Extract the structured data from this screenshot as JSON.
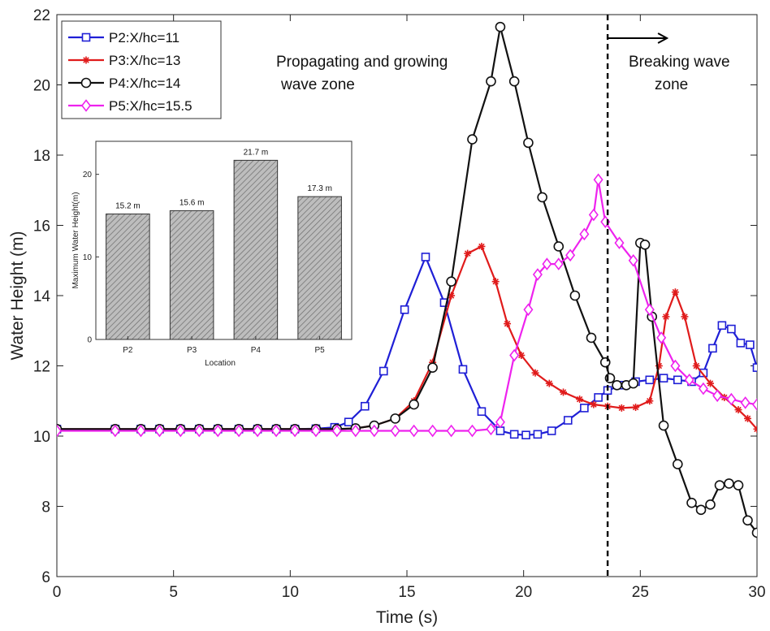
{
  "chart_data": {
    "type": "line",
    "xlabel": "Time (s)",
    "ylabel": "Water Height (m)",
    "xlim": [
      0,
      30
    ],
    "ylim": [
      6,
      22
    ],
    "xticks": [
      "0",
      "5",
      "10",
      "15",
      "20",
      "25",
      "30"
    ],
    "yticks": [
      "6",
      "8",
      "10",
      "12",
      "14",
      "16",
      "18",
      "20",
      "22"
    ],
    "grid": false,
    "legend_position": "top-left",
    "divider": {
      "x": 23.6,
      "style": "dashed",
      "color": "#000000"
    },
    "annotations": [
      {
        "text": "Propagating and growing",
        "anchor": "left zone"
      },
      {
        "text": "wave zone",
        "anchor": "left zone"
      },
      {
        "text": "Breaking wave",
        "anchor": "right zone"
      },
      {
        "text": "zone",
        "anchor": "right zone"
      }
    ],
    "series": [
      {
        "name": "P2:X/hc=11",
        "color": "#1f1fd6",
        "marker": "square",
        "points": [
          [
            0,
            10.2
          ],
          [
            2.5,
            10.2
          ],
          [
            3.6,
            10.2
          ],
          [
            4.4,
            10.2
          ],
          [
            5.3,
            10.2
          ],
          [
            6.1,
            10.2
          ],
          [
            6.9,
            10.2
          ],
          [
            7.8,
            10.2
          ],
          [
            8.6,
            10.2
          ],
          [
            9.4,
            10.2
          ],
          [
            10.2,
            10.2
          ],
          [
            11.1,
            10.21
          ],
          [
            11.9,
            10.25
          ],
          [
            12.5,
            10.4
          ],
          [
            13.2,
            10.85
          ],
          [
            14.0,
            11.85
          ],
          [
            14.9,
            13.6
          ],
          [
            15.8,
            15.1
          ],
          [
            16.6,
            13.8
          ],
          [
            17.4,
            11.9
          ],
          [
            18.2,
            10.7
          ],
          [
            19.0,
            10.15
          ],
          [
            19.6,
            10.05
          ],
          [
            20.1,
            10.03
          ],
          [
            20.6,
            10.05
          ],
          [
            21.2,
            10.15
          ],
          [
            21.9,
            10.45
          ],
          [
            22.6,
            10.8
          ],
          [
            23.2,
            11.1
          ],
          [
            23.6,
            11.3
          ],
          [
            24.2,
            11.45
          ],
          [
            24.8,
            11.55
          ],
          [
            25.4,
            11.6
          ],
          [
            26.0,
            11.65
          ],
          [
            26.6,
            11.6
          ],
          [
            27.2,
            11.55
          ],
          [
            27.7,
            11.8
          ],
          [
            28.1,
            12.5
          ],
          [
            28.5,
            13.15
          ],
          [
            28.9,
            13.05
          ],
          [
            29.3,
            12.65
          ],
          [
            29.7,
            12.6
          ],
          [
            30.0,
            11.95
          ]
        ]
      },
      {
        "name": "P3:X/hc=13",
        "color": "#e01b1b",
        "marker": "asterisk",
        "points": [
          [
            0,
            10.2
          ],
          [
            2.5,
            10.2
          ],
          [
            3.6,
            10.2
          ],
          [
            4.4,
            10.2
          ],
          [
            5.3,
            10.2
          ],
          [
            6.1,
            10.2
          ],
          [
            6.9,
            10.2
          ],
          [
            7.8,
            10.2
          ],
          [
            8.6,
            10.2
          ],
          [
            9.4,
            10.2
          ],
          [
            10.2,
            10.2
          ],
          [
            11.1,
            10.2
          ],
          [
            12.0,
            10.2
          ],
          [
            12.8,
            10.22
          ],
          [
            13.6,
            10.3
          ],
          [
            14.5,
            10.5
          ],
          [
            15.3,
            11.0
          ],
          [
            16.1,
            12.1
          ],
          [
            16.9,
            14.0
          ],
          [
            17.6,
            15.2
          ],
          [
            18.2,
            15.4
          ],
          [
            18.8,
            14.4
          ],
          [
            19.3,
            13.2
          ],
          [
            19.9,
            12.3
          ],
          [
            20.5,
            11.8
          ],
          [
            21.1,
            11.5
          ],
          [
            21.7,
            11.25
          ],
          [
            22.4,
            11.05
          ],
          [
            23.0,
            10.9
          ],
          [
            23.6,
            10.85
          ],
          [
            24.2,
            10.8
          ],
          [
            24.8,
            10.82
          ],
          [
            25.4,
            11.0
          ],
          [
            25.8,
            12.0
          ],
          [
            26.1,
            13.4
          ],
          [
            26.5,
            14.1
          ],
          [
            26.9,
            13.4
          ],
          [
            27.4,
            12.0
          ],
          [
            28.0,
            11.5
          ],
          [
            28.6,
            11.1
          ],
          [
            29.2,
            10.75
          ],
          [
            29.6,
            10.5
          ],
          [
            30.0,
            10.2
          ]
        ]
      },
      {
        "name": "P4:X/hc=14",
        "color": "#111111",
        "marker": "circle",
        "points": [
          [
            0,
            10.2
          ],
          [
            2.5,
            10.2
          ],
          [
            3.6,
            10.2
          ],
          [
            4.4,
            10.2
          ],
          [
            5.3,
            10.2
          ],
          [
            6.1,
            10.2
          ],
          [
            6.9,
            10.2
          ],
          [
            7.8,
            10.2
          ],
          [
            8.6,
            10.2
          ],
          [
            9.4,
            10.2
          ],
          [
            10.2,
            10.2
          ],
          [
            11.1,
            10.2
          ],
          [
            12.0,
            10.2
          ],
          [
            12.8,
            10.22
          ],
          [
            13.6,
            10.3
          ],
          [
            14.5,
            10.5
          ],
          [
            15.3,
            10.9
          ],
          [
            16.1,
            11.95
          ],
          [
            16.9,
            14.4
          ],
          [
            17.8,
            18.45
          ],
          [
            18.6,
            20.1
          ],
          [
            19.0,
            21.65
          ],
          [
            19.6,
            20.1
          ],
          [
            20.2,
            18.35
          ],
          [
            20.8,
            16.8
          ],
          [
            21.5,
            15.4
          ],
          [
            22.2,
            14.0
          ],
          [
            22.9,
            12.8
          ],
          [
            23.5,
            12.1
          ],
          [
            23.7,
            11.65
          ],
          [
            24.0,
            11.45
          ],
          [
            24.4,
            11.45
          ],
          [
            24.7,
            11.5
          ],
          [
            25.0,
            15.5
          ],
          [
            25.2,
            15.45
          ],
          [
            25.5,
            13.4
          ],
          [
            26.0,
            10.3
          ],
          [
            26.6,
            9.2
          ],
          [
            27.2,
            8.1
          ],
          [
            27.6,
            7.9
          ],
          [
            28.0,
            8.05
          ],
          [
            28.4,
            8.6
          ],
          [
            28.8,
            8.65
          ],
          [
            29.2,
            8.6
          ],
          [
            29.6,
            7.6
          ],
          [
            30.0,
            7.25
          ]
        ]
      },
      {
        "name": "P5:X/hc=15.5",
        "color": "#ee22ee",
        "marker": "diamond",
        "points": [
          [
            0,
            10.15
          ],
          [
            2.5,
            10.15
          ],
          [
            3.6,
            10.15
          ],
          [
            4.4,
            10.15
          ],
          [
            5.3,
            10.15
          ],
          [
            6.1,
            10.15
          ],
          [
            6.9,
            10.15
          ],
          [
            7.8,
            10.15
          ],
          [
            8.6,
            10.15
          ],
          [
            9.4,
            10.15
          ],
          [
            10.2,
            10.15
          ],
          [
            11.1,
            10.15
          ],
          [
            12.0,
            10.15
          ],
          [
            12.8,
            10.15
          ],
          [
            13.6,
            10.15
          ],
          [
            14.5,
            10.15
          ],
          [
            15.3,
            10.15
          ],
          [
            16.1,
            10.15
          ],
          [
            16.9,
            10.15
          ],
          [
            17.8,
            10.15
          ],
          [
            18.6,
            10.2
          ],
          [
            19.0,
            10.4
          ],
          [
            19.6,
            12.3
          ],
          [
            20.2,
            13.6
          ],
          [
            20.6,
            14.6
          ],
          [
            21.0,
            14.9
          ],
          [
            21.5,
            14.9
          ],
          [
            22.0,
            15.15
          ],
          [
            22.6,
            15.75
          ],
          [
            23.0,
            16.3
          ],
          [
            23.2,
            17.3
          ],
          [
            23.5,
            16.1
          ],
          [
            24.1,
            15.5
          ],
          [
            24.7,
            15.0
          ],
          [
            25.4,
            13.6
          ],
          [
            25.9,
            12.8
          ],
          [
            26.5,
            12.0
          ],
          [
            27.1,
            11.6
          ],
          [
            27.7,
            11.35
          ],
          [
            28.3,
            11.15
          ],
          [
            28.9,
            11.05
          ],
          [
            29.5,
            10.95
          ],
          [
            30.0,
            10.9
          ]
        ]
      }
    ],
    "inset": {
      "type": "bar",
      "categories": [
        "P2",
        "P3",
        "P4",
        "P5"
      ],
      "values": [
        15.2,
        15.6,
        21.7,
        17.3
      ],
      "value_labels": [
        "15.2 m",
        "15.6 m",
        "21.7 m",
        "17.3 m"
      ],
      "xlabel": "Location",
      "ylabel": "Maximum Water Height(m)",
      "ylim": [
        0,
        24
      ],
      "yticks": [
        "0",
        "10",
        "20"
      ],
      "bar_color": "#b5b5b5",
      "hatch": true
    }
  }
}
